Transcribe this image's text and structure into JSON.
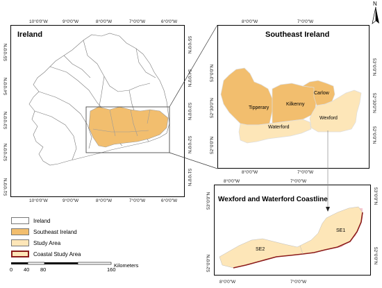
{
  "panels": {
    "ireland": {
      "title": "Ireland",
      "top_ticks": [
        "10°0'0\"W",
        "9°0'0\"W",
        "8°0'0\"W",
        "7°0'0\"W",
        "6°0'0\"W"
      ],
      "bottom_ticks": [
        "10°0'0\"W",
        "9°0'0\"W",
        "8°0'0\"W",
        "7°0'0\"W",
        "6°0'0\"W"
      ],
      "left_ticks": [
        "55°0'0\"N",
        "54°0'0\"N",
        "53°0'0\"N",
        "52°0'0\"N",
        "51°0'0\"N"
      ],
      "right_ticks": [
        "55°0'0\"N",
        "54°0'0\"N",
        "53°0'0\"N",
        "52°0'0\"N",
        "51°0'0\"N"
      ]
    },
    "southeast": {
      "title": "Southeast Ireland",
      "top_ticks": [
        "8°0'0\"W",
        "7°0'0\"W"
      ],
      "bottom_ticks": [
        "8°0'0\"W",
        "7°0'0\"W"
      ],
      "left_ticks": [
        "53°0'0\"N",
        "52°30'0\"N",
        "52°0'0\"N"
      ],
      "right_ticks": [
        "53°0'0\"N",
        "52°30'0\"N",
        "52°0'0\"N"
      ],
      "counties": [
        "Carlow",
        "Tipperary",
        "Kilkenny",
        "Waterford",
        "Wexford"
      ]
    },
    "coastline": {
      "title": "Wexford and Waterford Coastline",
      "top_ticks": [
        "8°0'0\"W",
        "7°0'0\"W"
      ],
      "bottom_ticks": [
        "8°0'0\"W",
        "7°0'0\"W"
      ],
      "left_ticks": [
        "53°0'0\"N",
        "52°0'0\"N"
      ],
      "right_ticks": [
        "53°0'0\"N",
        "52°0'0\"N"
      ],
      "sites": [
        "SE1",
        "SE2"
      ]
    }
  },
  "legend": {
    "items": [
      {
        "label": "Ireland",
        "color": "#ffffff"
      },
      {
        "label": "Southeast Ireland",
        "color": "#f2be6e"
      },
      {
        "label": "Study Area",
        "color": "#fde6b8"
      },
      {
        "label": "Coastal Study Area",
        "color": "#8b1a1a"
      }
    ]
  },
  "scale_bar": {
    "ticks": [
      "0",
      "40",
      "80",
      "160"
    ],
    "unit": "Kilometers"
  },
  "north_arrow": {
    "label": "N"
  },
  "colors": {
    "southeast": "#f2be6e",
    "study_area": "#fde6b8",
    "coast": "#8b1a1a",
    "highlight_pink": "#f7c6d0",
    "county_border": "#bbbbbb"
  }
}
